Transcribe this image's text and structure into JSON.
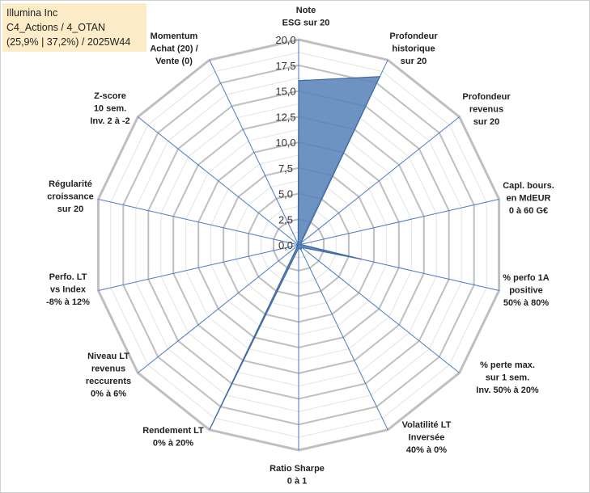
{
  "info": {
    "line1": "Illumina Inc",
    "line2": "C4_Actions / 4_OTAN",
    "line3": "(25,9% | 37,2%) / 2025W44"
  },
  "colors": {
    "fill": "#5a83ba",
    "stroke": "#3e6aa3",
    "grid": "#bfbfbf",
    "spoke": "#4a7bbf",
    "info_bg": "#fdecc8"
  },
  "chart_data": {
    "type": "radar",
    "r_max": 20,
    "r_min": 0,
    "rings": [
      2.5,
      5,
      7.5,
      10,
      12.5,
      15,
      17.5,
      20
    ],
    "tick_labels": [
      "0,0",
      "2,5",
      "5,0",
      "7,5",
      "10,0",
      "12,5",
      "15,0",
      "17,5",
      "20,0"
    ],
    "axes": [
      {
        "label": [
          "Note",
          "ESG sur 20"
        ],
        "value": 16.0
      },
      {
        "label": [
          "Profondeur",
          "historique",
          "sur 20"
        ],
        "value": 18.2
      },
      {
        "label": [
          "Profondeur",
          "revenus",
          "sur 20"
        ],
        "value": 0.3
      },
      {
        "label": [
          "Capl. bours.",
          "en MdEUR",
          "0 à 60 G€"
        ],
        "value": 0.2
      },
      {
        "label": [
          "% perfo 1A",
          "positive",
          "50% à 80%"
        ],
        "value": 6.2
      },
      {
        "label": [
          "% perte max.",
          "sur 1 sem.",
          "Inv. 50% à 20%"
        ],
        "value": 0.4
      },
      {
        "label": [
          "Volatilité LT",
          "Inversée",
          "40% à 0%"
        ],
        "value": 0.5
      },
      {
        "label": [
          "Ratio Sharpe",
          "0 à 1"
        ],
        "value": 0.3
      },
      {
        "label": [
          "Rendement LT",
          "0% à 20%"
        ],
        "value": 19.9
      },
      {
        "label": [
          "Niveau LT",
          "revenus",
          "reccurents",
          "0% à 6%"
        ],
        "value": 0.1
      },
      {
        "label": [
          "Perfo. LT",
          "vs Index",
          "-8% à 12%"
        ],
        "value": 0.1
      },
      {
        "label": [
          "Régularité",
          "croissance",
          "sur 20"
        ],
        "value": 0.1
      },
      {
        "label": [
          "Z-score",
          "10 sem.",
          "Inv. 2 à -2"
        ],
        "value": 0.1
      },
      {
        "label": [
          "Momentum",
          "Achat (20) /",
          "Vente (0)"
        ],
        "value": 0.1
      }
    ]
  }
}
